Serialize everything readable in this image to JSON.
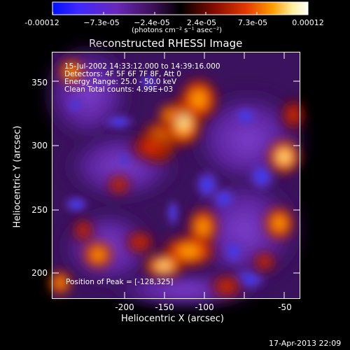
{
  "colorbar": {
    "tick_labels": [
      "-0.00012",
      "−7.3e-05",
      "−2.4e-05",
      "2.4e-05",
      "7.3e-05",
      "0.00012"
    ],
    "unit_label": "(photons cm⁻² s⁻¹ asec⁻²)"
  },
  "plot": {
    "title": "Reconstructed RHESSI Image",
    "x_label": "Heliocentric X (arcsec)",
    "y_label": "Heliocentric Y (arcsec)",
    "x_ticks": [
      "-200",
      "-150",
      "-100",
      "-50"
    ],
    "y_ticks": [
      "350",
      "300",
      "250",
      "200"
    ],
    "annotations": {
      "time": "15-Jul-2002 14:33:12.000 to 14:39:16.000",
      "detectors": "Detectors: 4F 5F 6F 7F 8F, Att 0",
      "energy": "Energy Range: 25.0 - 50.0 keV",
      "clean": "Clean     Total counts: 4.99E+03"
    },
    "peak_label": "Position of Peak = [-128,325]"
  },
  "footer": {
    "timestamp": "17-Apr-2013 22:09"
  },
  "colors": {
    "cmap_low": "#0000ff",
    "cmap_mid_low": "#7a2fb0",
    "cmap_mid": "#000000",
    "cmap_mid_high": "#c81e00",
    "cmap_high": "#ffffff"
  }
}
